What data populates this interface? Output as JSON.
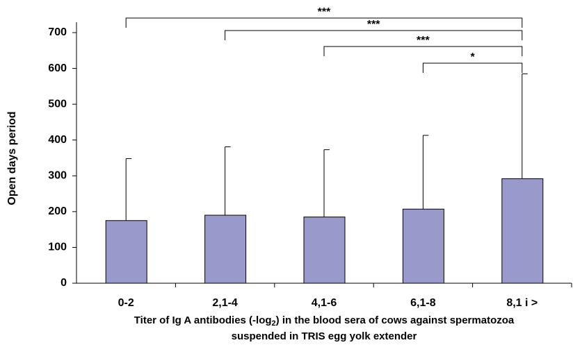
{
  "chart_data": {
    "type": "bar",
    "y_label": "Open days period",
    "x_label": [
      "Titer of Ig A antibodies (-log",
      "2",
      ") in the blood sera of cows against spermatozoa",
      "suspended in TRIS egg yolk extender"
    ],
    "categories": [
      "0-2",
      "2,1-4",
      "4,1-6",
      "6,1-8",
      "8,1 i >"
    ],
    "values": [
      175,
      190,
      185,
      207,
      292
    ],
    "errors": [
      173,
      191,
      188,
      206,
      293
    ],
    "color": "#9999cc",
    "ylim": [
      0,
      700
    ],
    "yticks": [
      0,
      100,
      200,
      300,
      400,
      500,
      600,
      700
    ],
    "annotations": [
      {
        "label": "***",
        "from": 0,
        "to": 4
      },
      {
        "label": "***",
        "from": 1,
        "to": 4
      },
      {
        "label": "***",
        "from": 2,
        "to": 4
      },
      {
        "label": "*",
        "from": 3,
        "to": 4
      }
    ]
  }
}
